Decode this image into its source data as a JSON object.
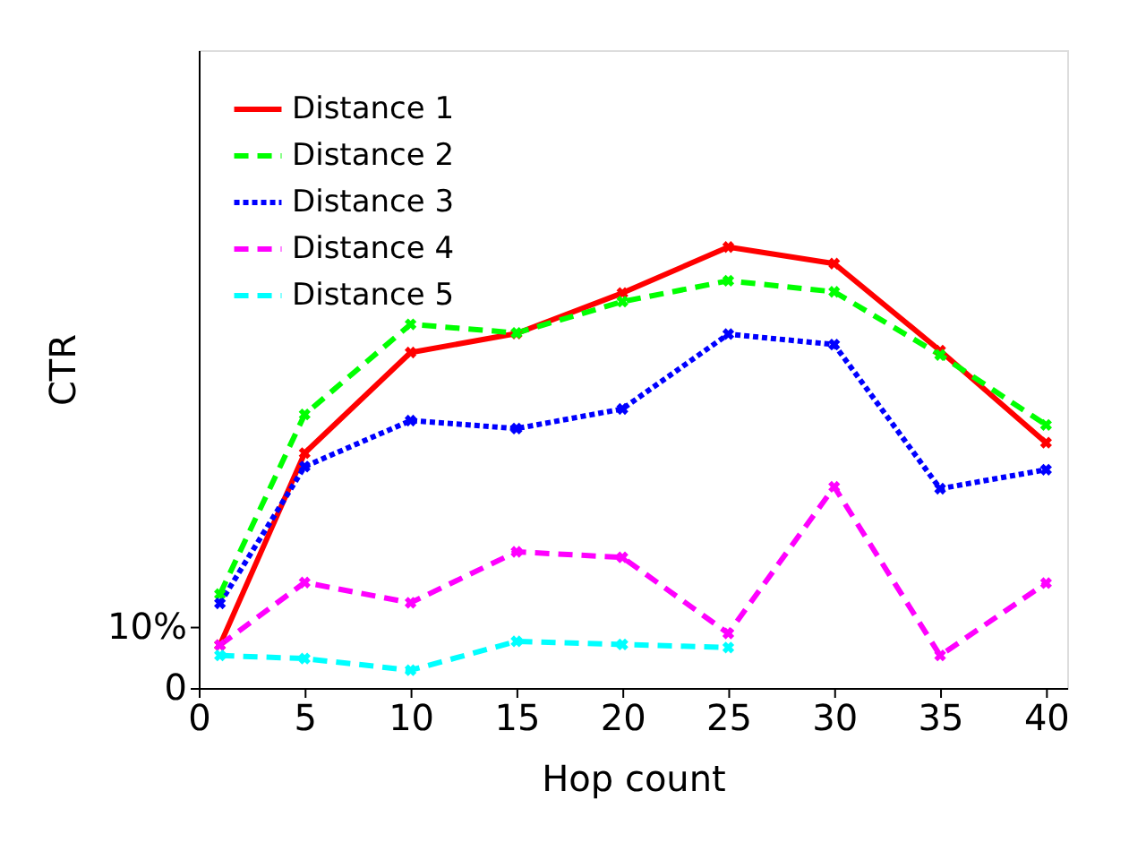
{
  "chart_data": {
    "type": "line",
    "xlabel": "Hop count",
    "ylabel": "CTR",
    "x": [
      1,
      5,
      10,
      15,
      20,
      25,
      30,
      35,
      40
    ],
    "xlim": [
      0,
      41
    ],
    "xticks": [
      0,
      5,
      10,
      15,
      20,
      25,
      30,
      35,
      40
    ],
    "ylim": [
      0,
      104
    ],
    "yticks": [
      0,
      {
        "value": 10,
        "label": "10%"
      }
    ],
    "grid": false,
    "legend": "top left",
    "marker": "cross",
    "series": [
      {
        "name": "Distance 1",
        "color": "#ff0000",
        "line_style": "solid",
        "values": [
          7.0,
          38.3,
          54.7,
          57.8,
          64.4,
          71.9,
          69.2,
          55.0,
          40.0
        ]
      },
      {
        "name": "Distance 2",
        "color": "#00ff00",
        "line_style": "dashed",
        "values": [
          15.3,
          44.6,
          59.3,
          57.9,
          63.0,
          66.4,
          64.6,
          54.3,
          42.9
        ]
      },
      {
        "name": "Distance 3",
        "color": "#0000ff",
        "line_style": "dotted",
        "values": [
          13.8,
          36.1,
          43.6,
          42.3,
          45.5,
          57.7,
          56.0,
          32.5,
          35.6
        ]
      },
      {
        "name": "Distance 4",
        "color": "#ff00ff",
        "line_style": "dashed",
        "values": [
          7.0,
          17.2,
          13.9,
          22.2,
          21.3,
          8.9,
          32.8,
          5.3,
          17.1
        ]
      },
      {
        "name": "Distance 5",
        "color": "#00ffff",
        "line_style": "dashed",
        "values": [
          5.3,
          4.8,
          2.9,
          7.6,
          7.1,
          6.6,
          null,
          null,
          null
        ]
      }
    ]
  }
}
